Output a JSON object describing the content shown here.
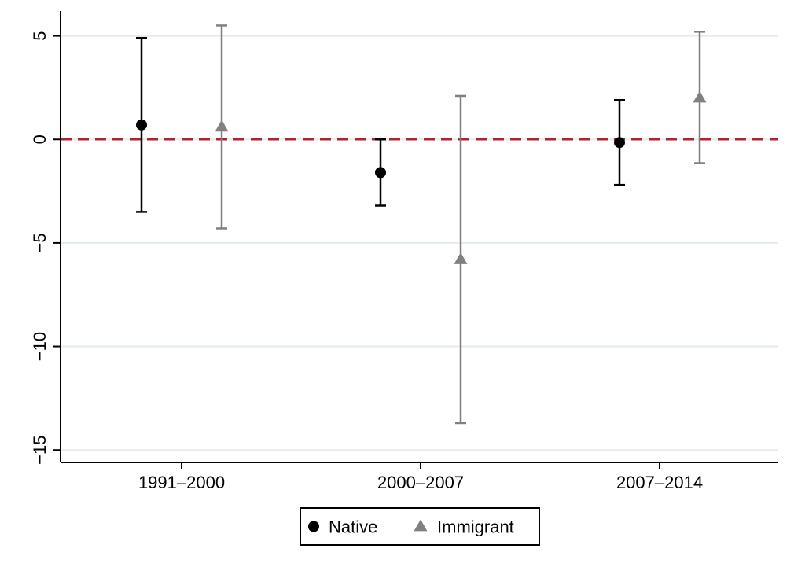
{
  "chart_data": {
    "type": "scatter",
    "title": "",
    "xlabel": "",
    "ylabel": "",
    "categories": [
      "1991–2000",
      "2000–2007",
      "2007–2014"
    ],
    "y_ticks": [
      "5",
      "0",
      "−5",
      "−10",
      "−15"
    ],
    "y_tick_values": [
      5,
      0,
      -5,
      -10,
      -15
    ],
    "ylim": [
      -15.6,
      6.2
    ],
    "grid": true,
    "reference_line": {
      "y": 0,
      "style": "dashed",
      "color": "#b22234"
    },
    "legend_position": "bottom-center",
    "series": [
      {
        "name": "Native",
        "marker": "circle",
        "color": "#000000",
        "points": [
          {
            "category": "1991–2000",
            "estimate": 0.7,
            "ci_low": -3.5,
            "ci_high": 4.9
          },
          {
            "category": "2000–2007",
            "estimate": -1.6,
            "ci_low": -3.2,
            "ci_high": 0.0
          },
          {
            "category": "2007–2014",
            "estimate": -0.15,
            "ci_low": -2.2,
            "ci_high": 1.9
          }
        ]
      },
      {
        "name": "Immigrant",
        "marker": "triangle",
        "color": "#808080",
        "points": [
          {
            "category": "1991–2000",
            "estimate": 0.6,
            "ci_low": -4.3,
            "ci_high": 5.5
          },
          {
            "category": "2000–2007",
            "estimate": -5.8,
            "ci_low": -13.7,
            "ci_high": 2.1
          },
          {
            "category": "2007–2014",
            "estimate": 2.0,
            "ci_low": -1.15,
            "ci_high": 5.2
          }
        ]
      }
    ]
  }
}
